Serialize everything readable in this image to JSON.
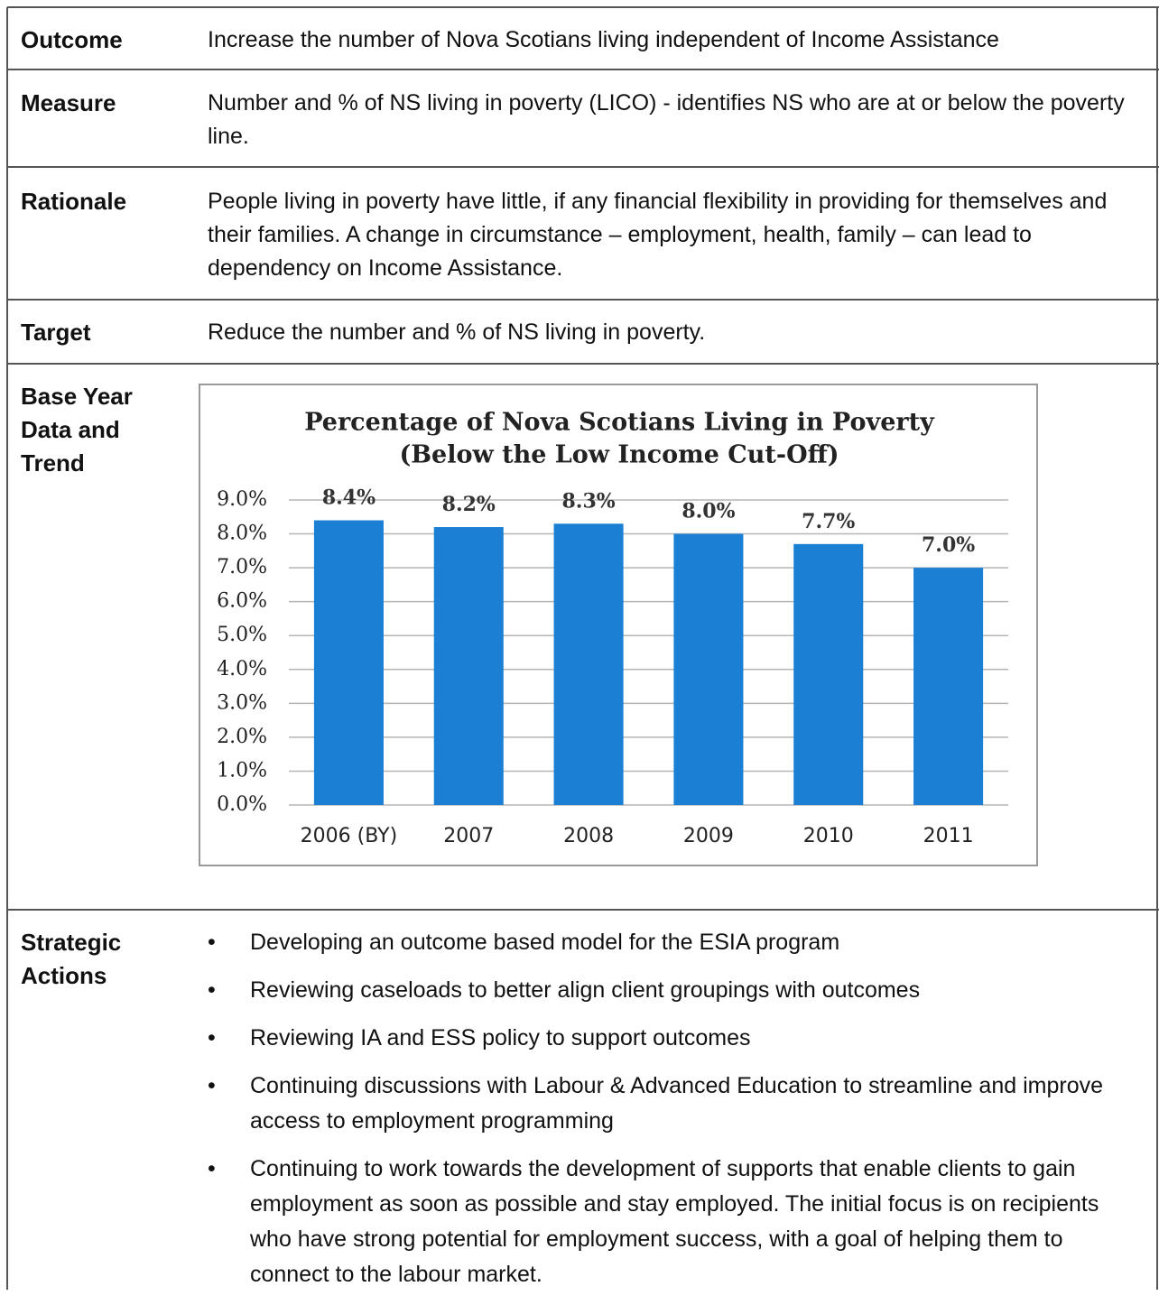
{
  "table": {
    "rows": [
      {
        "label": "Outcome",
        "text": "Increase the number of Nova Scotians living independent of Income Assistance"
      },
      {
        "label": "Measure",
        "text": "Number and % of NS living in poverty (LICO) - identifies NS who are at or below the poverty line."
      },
      {
        "label": "Rationale",
        "text": "People living in poverty have little, if any financial flexibility in providing for themselves and their families. A change in circumstance – employment, health, family – can lead to dependency on Income Assistance."
      },
      {
        "label": "Target",
        "text": "Reduce the number and % of NS living in poverty."
      },
      {
        "label": "Base Year Data and Trend"
      },
      {
        "label": "Strategic Actions",
        "items": [
          "Developing an outcome based model for the ESIA program",
          "Reviewing caseloads to better align client groupings with outcomes",
          "Reviewing IA and ESS policy to support outcomes",
          "Continuing discussions with Labour & Advanced Education to streamline and improve access to employment programming",
          "Continuing to work towards the development of supports that enable clients to gain employment as soon as possible and stay employed. The initial focus is on recipients who have strong potential for employment success, with a goal of helping them to connect to the labour market."
        ]
      }
    ]
  },
  "chart_data": {
    "type": "bar",
    "title": [
      "Percentage of Nova Scotians Living in Poverty",
      "(Below the Low Income Cut-Off)"
    ],
    "categories": [
      "2006 (BY)",
      "2007",
      "2008",
      "2009",
      "2010",
      "2011"
    ],
    "values": [
      8.4,
      8.2,
      8.3,
      8.0,
      7.7,
      7.0
    ],
    "value_labels": [
      "8.4%",
      "8.2%",
      "8.3%",
      "8.0%",
      "7.7%",
      "7.0%"
    ],
    "color": "#1b7fd3",
    "ylim": [
      0,
      9
    ],
    "yticks": [
      {
        "value": 0,
        "label": "0.0%"
      },
      {
        "value": 1,
        "label": "1.0%"
      },
      {
        "value": 2,
        "label": "2.0%"
      },
      {
        "value": 3,
        "label": "3.0%"
      },
      {
        "value": 4,
        "label": "4.0%"
      },
      {
        "value": 5,
        "label": "5.0%"
      },
      {
        "value": 6,
        "label": "6.0%"
      },
      {
        "value": 7,
        "label": "7.0%"
      },
      {
        "value": 8,
        "label": "8.0%"
      },
      {
        "value": 9,
        "label": "9.0%"
      }
    ],
    "grid": true
  }
}
